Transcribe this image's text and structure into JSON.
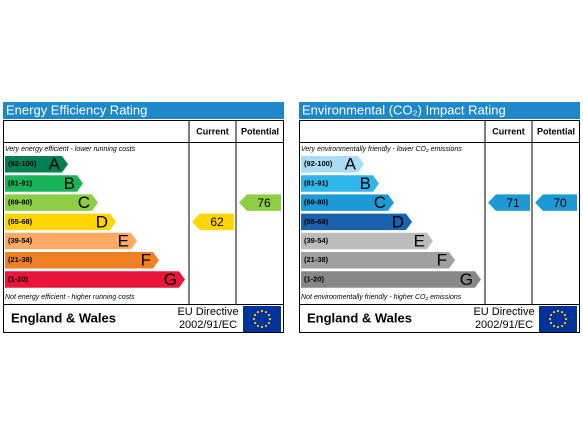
{
  "panels": [
    {
      "title": "Energy Efficiency Rating",
      "headers": [
        "Current",
        "Potential"
      ],
      "top_note": "Very energy efficient - lower running costs",
      "bottom_note": "Not energy efficient - higher running costs",
      "bands": [
        {
          "range": "(92-100)",
          "letter": "A",
          "color": "#008054"
        },
        {
          "range": "(81-91)",
          "letter": "B",
          "color": "#19b459"
        },
        {
          "range": "(69-80)",
          "letter": "C",
          "color": "#8dce46"
        },
        {
          "range": "(55-68)",
          "letter": "D",
          "color": "#ffd500"
        },
        {
          "range": "(39-54)",
          "letter": "E",
          "color": "#fcaa65"
        },
        {
          "range": "(21-38)",
          "letter": "F",
          "color": "#ef8023"
        },
        {
          "range": "(1-20)",
          "letter": "G",
          "color": "#e9153b"
        }
      ],
      "current": 62,
      "potential": 76,
      "footer": {
        "region": "England & Wales",
        "directive": [
          "EU Directive",
          "2002/91/EC"
        ]
      }
    },
    {
      "title": "Environmental (CO₂) Impact Rating",
      "headers": [
        "Current",
        "Potential"
      ],
      "top_note": "Very environmentally friendly - lower CO₂ emissions",
      "bottom_note": "Not environmentally friendly - higher CO₂ emissions",
      "bands": [
        {
          "range": "(92-100)",
          "letter": "A",
          "color": "#a9dcf5"
        },
        {
          "range": "(81-91)",
          "letter": "B",
          "color": "#2fb6ea"
        },
        {
          "range": "(69-80)",
          "letter": "C",
          "color": "#1d9ad6"
        },
        {
          "range": "(55-68)",
          "letter": "D",
          "color": "#1a62ad"
        },
        {
          "range": "(39-54)",
          "letter": "E",
          "color": "#bbbbbb"
        },
        {
          "range": "(21-38)",
          "letter": "F",
          "color": "#a0a0a0"
        },
        {
          "range": "(1-20)",
          "letter": "G",
          "color": "#878787"
        }
      ],
      "current": 71,
      "potential": 70,
      "footer": {
        "region": "England & Wales",
        "directive": [
          "EU Directive",
          "2002/91/EC"
        ]
      }
    }
  ]
}
